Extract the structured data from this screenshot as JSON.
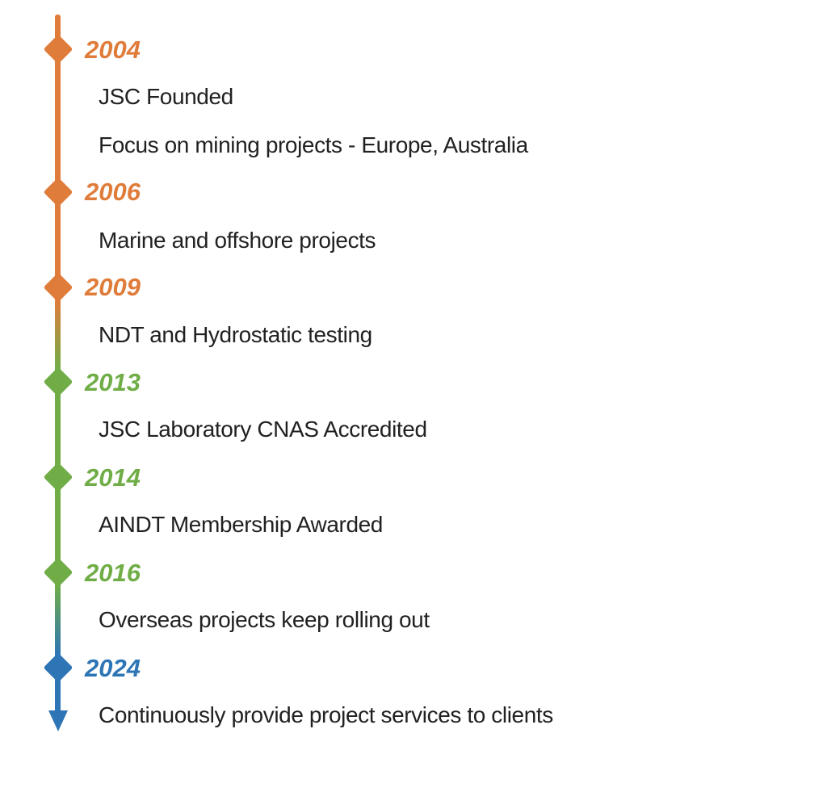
{
  "background": "#ffffff",
  "colors": {
    "orange": "#e07c3a",
    "green": "#70ad47",
    "blue": "#2e75b6",
    "text": "#212121"
  },
  "timeline": {
    "type": "vertical-timeline",
    "marker": "diamond",
    "arrow_end": "down",
    "items": [
      {
        "year": "2004",
        "color_hex": "#e07c3a",
        "descriptions": [
          "JSC Founded",
          "Focus on mining projects - Europe, Australia"
        ]
      },
      {
        "year": "2006",
        "color_hex": "#e07c3a",
        "descriptions": [
          "Marine and offshore projects"
        ]
      },
      {
        "year": "2009",
        "color_hex": "#e07c3a",
        "descriptions": [
          "NDT and Hydrostatic testing"
        ]
      },
      {
        "year": "2013",
        "color_hex": "#70ad47",
        "descriptions": [
          "JSC Laboratory CNAS Accredited"
        ]
      },
      {
        "year": "2014",
        "color_hex": "#70ad47",
        "descriptions": [
          "AINDT Membership Awarded"
        ]
      },
      {
        "year": "2016",
        "color_hex": "#70ad47",
        "descriptions": [
          "Overseas projects keep rolling out"
        ]
      },
      {
        "year": "2024",
        "color_hex": "#2e75b6",
        "descriptions": [
          "Continuously provide project services to clients"
        ]
      }
    ]
  }
}
